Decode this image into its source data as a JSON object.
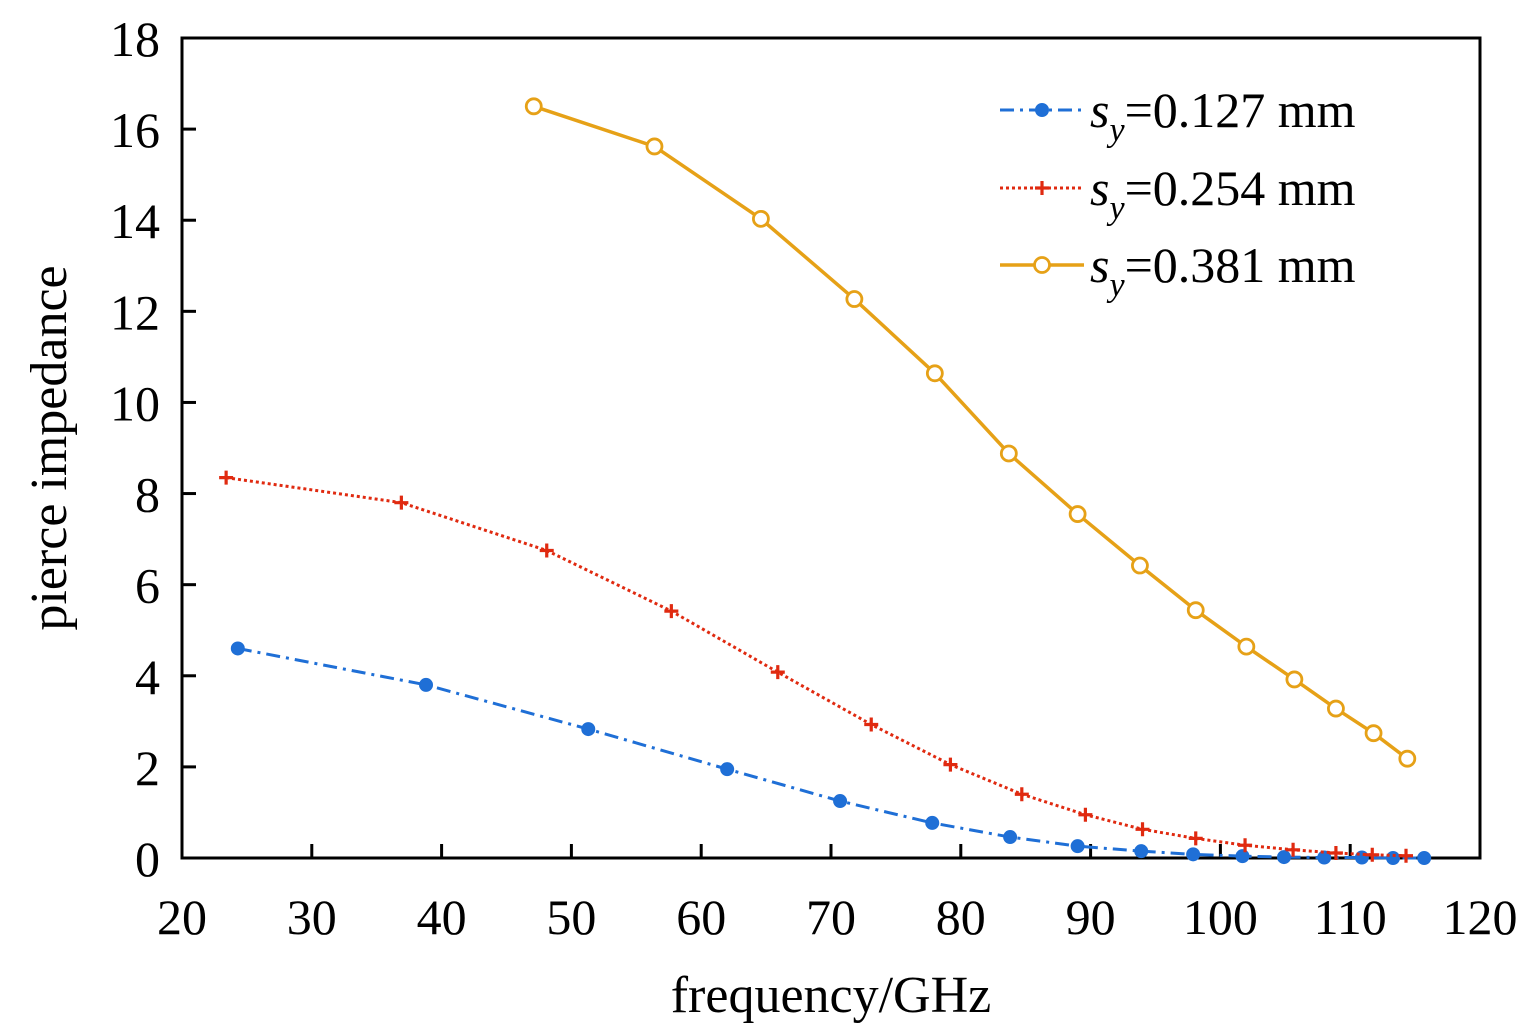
{
  "chart_data": {
    "type": "line",
    "title": "",
    "xlabel": "frequency/GHz",
    "ylabel": "pierce impedance",
    "xlim": [
      20,
      120
    ],
    "ylim": [
      0,
      18
    ],
    "xticks": [
      20,
      30,
      40,
      50,
      60,
      70,
      80,
      90,
      100,
      110,
      120
    ],
    "yticks": [
      0,
      2,
      4,
      6,
      8,
      10,
      12,
      14,
      16,
      18
    ],
    "grid": false,
    "legend_position": "top-right",
    "series": [
      {
        "name": "=0.127 mm",
        "legend_symbol": "s",
        "legend_subscript": "y",
        "color": "#1f6fd6",
        "line_style": "dash-dot",
        "marker": "filled-circle",
        "x": [
          24.3,
          38.8,
          51.3,
          62.0,
          70.7,
          77.8,
          83.8,
          89.0,
          93.9,
          97.9,
          101.7,
          104.9,
          108.0,
          110.9,
          113.3,
          115.7
        ],
        "y": [
          4.6,
          3.8,
          2.83,
          1.95,
          1.25,
          0.77,
          0.46,
          0.26,
          0.15,
          0.08,
          0.04,
          0.02,
          0.01,
          0.01,
          0.0,
          0.0
        ]
      },
      {
        "name": "=0.254 mm",
        "legend_symbol": "s",
        "legend_subscript": "y",
        "color": "#e02a10",
        "line_style": "dotted",
        "marker": "plus",
        "x": [
          23.4,
          36.9,
          48.1,
          57.7,
          65.9,
          73.1,
          79.2,
          84.7,
          89.6,
          94.0,
          98.1,
          101.9,
          105.6,
          108.9,
          111.7,
          114.3
        ],
        "y": [
          8.35,
          7.8,
          6.75,
          5.42,
          4.08,
          2.93,
          2.05,
          1.4,
          0.95,
          0.63,
          0.43,
          0.28,
          0.18,
          0.11,
          0.07,
          0.05
        ]
      },
      {
        "name": "=0.381 mm",
        "legend_symbol": "s",
        "legend_subscript": "y",
        "color": "#e6a117",
        "line_style": "solid",
        "marker": "open-circle",
        "x": [
          47.1,
          56.4,
          64.6,
          71.8,
          78.0,
          83.7,
          89.0,
          93.8,
          98.1,
          102.0,
          105.7,
          108.9,
          111.8,
          114.4
        ],
        "y": [
          16.5,
          15.62,
          14.03,
          12.27,
          10.64,
          8.88,
          7.55,
          6.42,
          5.44,
          4.64,
          3.92,
          3.28,
          2.74,
          2.18
        ]
      }
    ]
  }
}
